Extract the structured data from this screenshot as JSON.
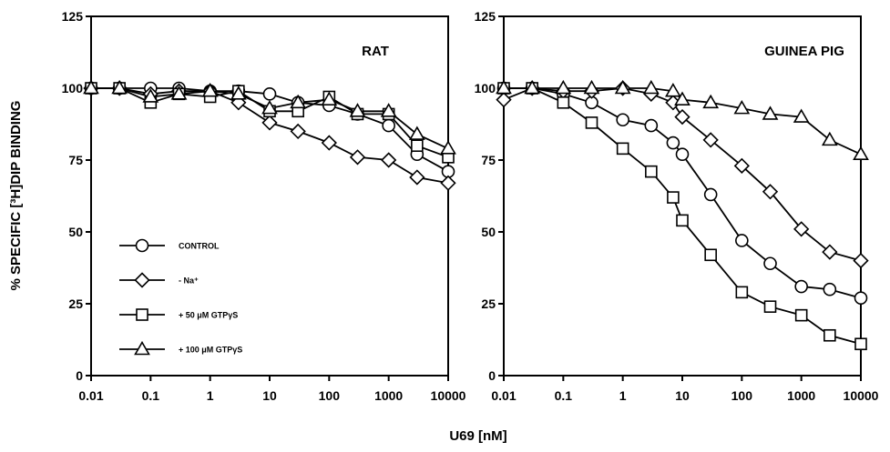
{
  "figure": {
    "ylabel": "% SPECIFIC [³H]DIP BINDING",
    "xlabel": "U69 [nM]"
  },
  "legend": {
    "items": [
      {
        "label": "CONTROL",
        "marker": "circle"
      },
      {
        "label": "- Na⁺",
        "marker": "diamond"
      },
      {
        "label": "+ 50 μM GTPγS",
        "marker": "square"
      },
      {
        "label": "+ 100 μM GTPγS",
        "marker": "triangle"
      }
    ]
  },
  "chart_data": [
    {
      "type": "line",
      "title": "RAT",
      "x_scale": "log",
      "xlim": [
        0.01,
        10000
      ],
      "ylim": [
        0,
        125
      ],
      "x_ticks": [
        0.01,
        0.1,
        1,
        10,
        100,
        1000,
        10000
      ],
      "x_tick_labels": [
        "0.01",
        "0.1",
        "1",
        "10",
        "100",
        "1000",
        "10000"
      ],
      "y_ticks": [
        0,
        25,
        50,
        75,
        100,
        125
      ],
      "y_tick_labels": [
        "0",
        "25",
        "50",
        "75",
        "100",
        "125"
      ],
      "x": [
        0.01,
        0.03,
        0.1,
        0.3,
        1,
        3,
        10,
        30,
        100,
        300,
        1000,
        3000,
        10000
      ],
      "series": [
        {
          "name": "CONTROL",
          "marker": "circle",
          "values": [
            100,
            100,
            100,
            100,
            99,
            99,
            98,
            95,
            94,
            91,
            87,
            77,
            71
          ]
        },
        {
          "name": "- Na⁺",
          "marker": "diamond",
          "values": [
            100,
            100,
            98,
            99,
            99,
            95,
            88,
            85,
            81,
            76,
            75,
            69,
            67
          ]
        },
        {
          "name": "+ 50 μM GTPγS",
          "marker": "square",
          "values": [
            100,
            100,
            95,
            98,
            97,
            99,
            92,
            92,
            97,
            91,
            91,
            80,
            76
          ]
        },
        {
          "name": "+ 100 μM GTPγS",
          "marker": "triangle",
          "values": [
            100,
            100,
            97,
            98,
            99,
            98,
            93,
            95,
            96,
            92,
            92,
            84,
            79
          ]
        }
      ]
    },
    {
      "type": "line",
      "title": "GUINEA PIG",
      "x_scale": "log",
      "xlim": [
        0.01,
        10000
      ],
      "ylim": [
        0,
        125
      ],
      "x_ticks": [
        0.01,
        0.1,
        1,
        10,
        100,
        1000,
        10000
      ],
      "x_tick_labels": [
        "0.01",
        "0.1",
        "1",
        "10",
        "100",
        "1000",
        "10000"
      ],
      "y_ticks": [
        0,
        25,
        50,
        75,
        100,
        125
      ],
      "y_tick_labels": [
        "0",
        "25",
        "50",
        "75",
        "100",
        "125"
      ],
      "series": [
        {
          "name": "CONTROL",
          "marker": "circle",
          "x": [
            0.01,
            0.03,
            0.1,
            0.3,
            1,
            3,
            7,
            10,
            30,
            100,
            300,
            1000,
            3000,
            10000
          ],
          "values": [
            100,
            100,
            98,
            95,
            89,
            87,
            81,
            77,
            63,
            47,
            39,
            31,
            30,
            27
          ]
        },
        {
          "name": "- Na⁺",
          "marker": "diamond",
          "x": [
            0.01,
            0.03,
            0.1,
            0.3,
            1,
            3,
            7,
            10,
            30,
            100,
            300,
            1000,
            3000,
            10000
          ],
          "values": [
            96,
            100,
            99,
            99,
            100,
            98,
            95,
            90,
            82,
            73,
            64,
            51,
            43,
            40
          ]
        },
        {
          "name": "+ 50 μM GTPγS",
          "marker": "square",
          "x": [
            0.01,
            0.03,
            0.1,
            0.3,
            1,
            3,
            7,
            10,
            30,
            100,
            300,
            1000,
            3000,
            10000
          ],
          "values": [
            100,
            100,
            95,
            88,
            79,
            71,
            62,
            54,
            42,
            29,
            24,
            21,
            14,
            11
          ]
        },
        {
          "name": "+ 100 μM GTPγS",
          "marker": "triangle",
          "x": [
            0.01,
            0.03,
            0.1,
            0.3,
            1,
            3,
            7,
            10,
            30,
            100,
            300,
            1000,
            3000,
            10000
          ],
          "values": [
            100,
            100,
            100,
            100,
            100,
            100,
            99,
            96,
            95,
            93,
            91,
            90,
            82,
            77
          ]
        }
      ]
    }
  ]
}
